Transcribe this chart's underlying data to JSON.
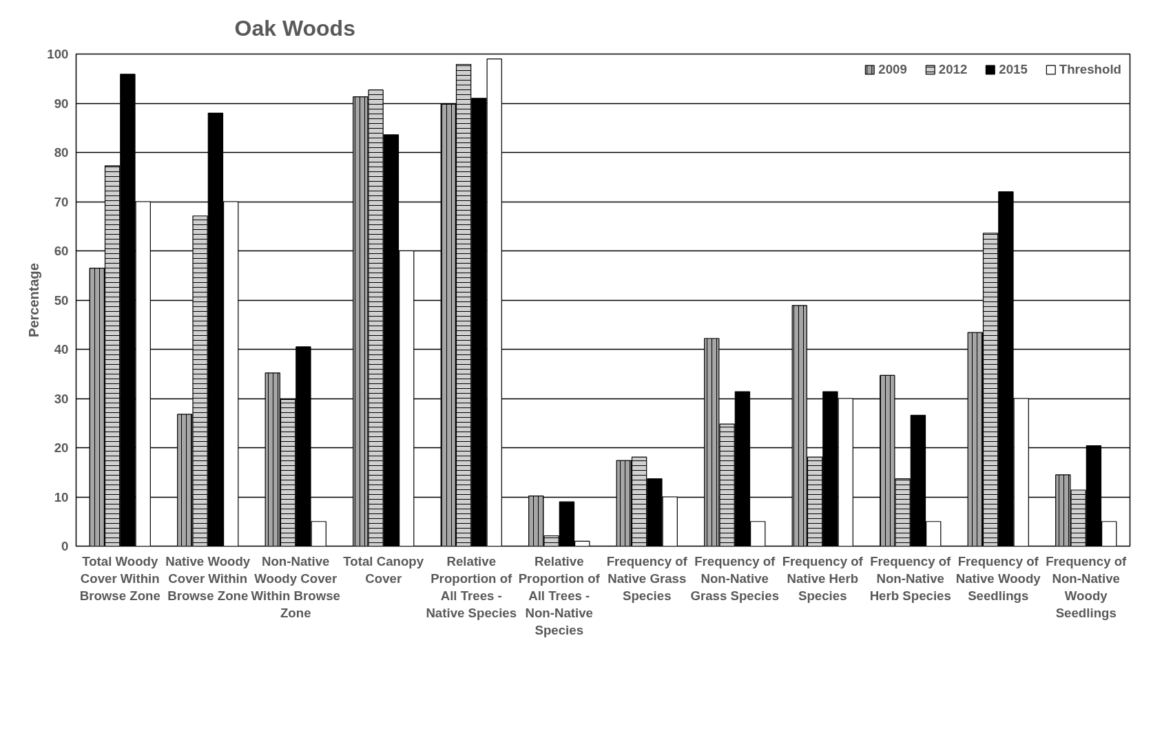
{
  "chart_data": {
    "type": "bar",
    "title": "Oak Woods",
    "ylabel": "Percentage",
    "categories": [
      "Total Woody Cover Within Browse Zone",
      "Native Woody Cover Within Browse Zone",
      "Non-Native Woody Cover Within Browse Zone",
      "Total Canopy Cover",
      "Relative Proportion of All Trees - Native Species",
      "Relative Proportion of All Trees - Non-Native Species",
      "Frequency of Native Grass Species",
      "Frequency of Non-Native Grass Species",
      "Frequency of Native Herb Species",
      "Frequency of Non-Native Herb Species",
      "Frequency of Native Woody Seedlings",
      "Frequency of Non-Native Woody Seedlings"
    ],
    "series": [
      {
        "name": "2009",
        "color": "#a6a6a6",
        "values": [
          56.5,
          26.8,
          35.2,
          91.3,
          89.8,
          10.2,
          17.4,
          42.2,
          48.9,
          34.7,
          43.4,
          14.5
        ]
      },
      {
        "name": "2012",
        "color": "#d0d0d0",
        "values": [
          77.3,
          67.1,
          29.8,
          92.7,
          97.9,
          2.1,
          18.1,
          24.8,
          18.1,
          13.7,
          63.6,
          11.4
        ]
      },
      {
        "name": "2015",
        "color": "#000000",
        "values": [
          95.9,
          88,
          40.5,
          83.6,
          91,
          9,
          13.7,
          31.4,
          31.4,
          26.6,
          72,
          20.4
        ]
      },
      {
        "name": "Threshold",
        "color": "#ffffff",
        "values": [
          70,
          70,
          5,
          60,
          99,
          1,
          10,
          5,
          30,
          5,
          30,
          5
        ]
      }
    ],
    "ylim": [
      0,
      100
    ],
    "yticks": [
      0,
      10,
      20,
      30,
      40,
      50,
      60,
      70,
      80,
      90,
      100
    ],
    "grid": "y",
    "legend": "top right"
  }
}
